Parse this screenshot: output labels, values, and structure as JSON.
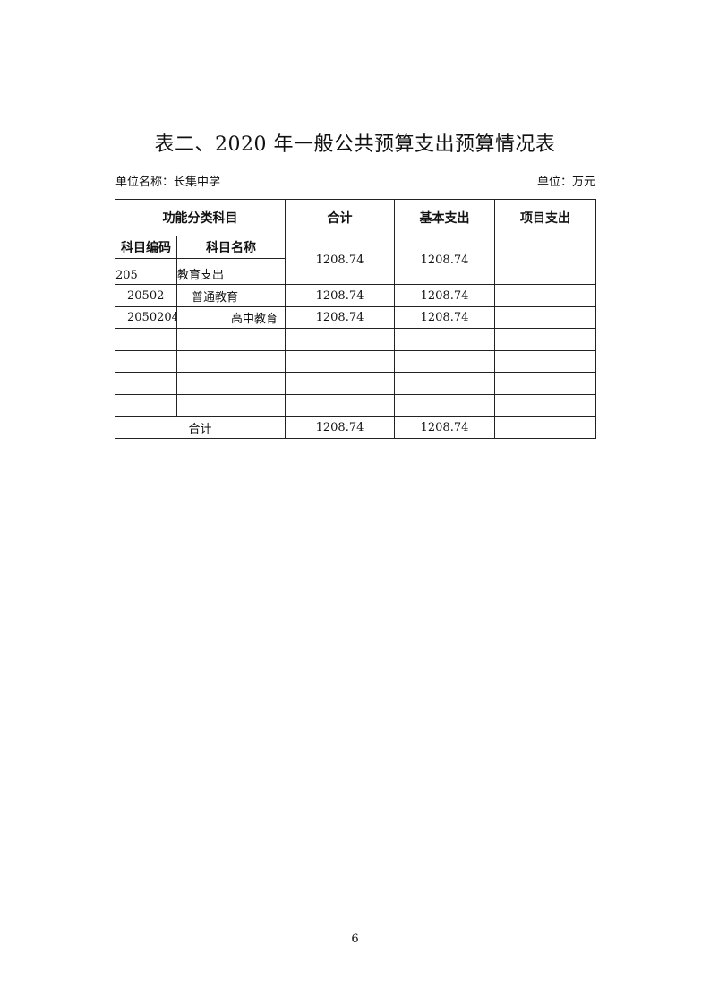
{
  "title": "表二、2020 年一般公共预算支出预算情况表",
  "unit_name_label": "单位名称：长集中学",
  "unit_label": "单位：万元",
  "headers": {
    "category": "功能分类科目",
    "total": "合计",
    "basic": "基本支出",
    "project": "项目支出",
    "code": "科目编码",
    "name": "科目名称"
  },
  "rows": [
    {
      "code": "205",
      "name": "教育支出",
      "total": "1208.74",
      "basic": "1208.74",
      "project": ""
    },
    {
      "code": "20502",
      "name": "普通教育",
      "total": "1208.74",
      "basic": "1208.74",
      "project": ""
    },
    {
      "code": "2050204",
      "name": "高中教育",
      "total": "1208.74",
      "basic": "1208.74",
      "project": ""
    }
  ],
  "footer": {
    "label": "合计",
    "total": "1208.74",
    "basic": "1208.74",
    "project": ""
  },
  "page_number": "6"
}
